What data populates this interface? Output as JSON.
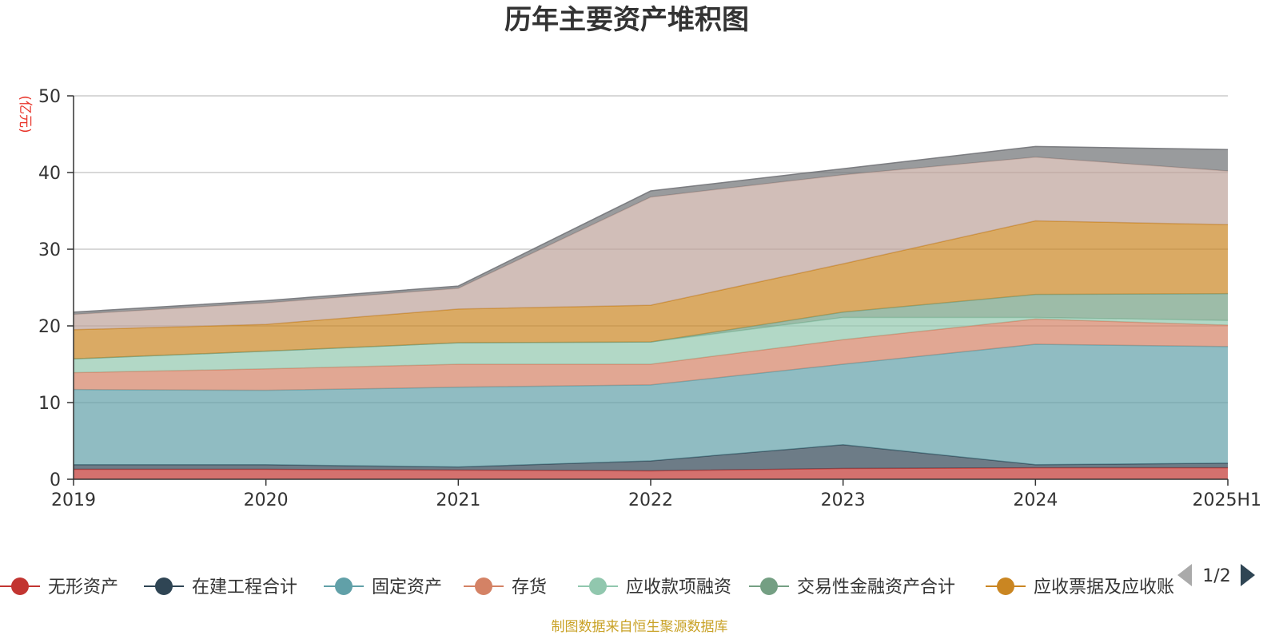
{
  "chart_data": {
    "type": "area",
    "stacked": true,
    "title": "历年主要资产堆积图",
    "ylabel": "(亿元)",
    "ylim": [
      0,
      50
    ],
    "yticks": [
      0,
      10,
      20,
      30,
      40,
      50
    ],
    "grid": true,
    "legend_position": "bottom",
    "categories": [
      "2019",
      "2020",
      "2021",
      "2022",
      "2023",
      "2024",
      "2025H1"
    ],
    "series": [
      {
        "name": "无形资产",
        "color": "#c23531",
        "values": [
          1.3,
          1.3,
          1.2,
          1.1,
          1.4,
          1.5,
          1.5
        ]
      },
      {
        "name": "在建工程合计",
        "color": "#2f4554",
        "values": [
          0.6,
          0.6,
          0.4,
          1.3,
          3.1,
          0.4,
          0.6
        ]
      },
      {
        "name": "固定资产",
        "color": "#61a0a8",
        "values": [
          9.8,
          9.7,
          10.4,
          9.9,
          10.5,
          15.7,
          15.2
        ]
      },
      {
        "name": "存货",
        "color": "#d48265",
        "values": [
          2.2,
          2.8,
          3.0,
          2.7,
          3.2,
          3.3,
          2.8
        ]
      },
      {
        "name": "应收款项融资",
        "color": "#91c7ae",
        "values": [
          1.8,
          2.3,
          2.8,
          2.9,
          2.9,
          0.2,
          0.6
        ]
      },
      {
        "name": "交易性金融资产合计",
        "color": "#749f83",
        "values": [
          0,
          0,
          0,
          0,
          0.7,
          3.0,
          3.5
        ]
      },
      {
        "name": "应收票据及应收账",
        "color": "#ca8622",
        "values": [
          3.8,
          3.5,
          4.4,
          4.8,
          6.3,
          9.6,
          9.0
        ]
      },
      {
        "name": "",
        "color": "#bda29a",
        "values": [
          2.0,
          2.8,
          2.7,
          14.1,
          11.6,
          8.3,
          7.0
        ]
      },
      {
        "name": "",
        "color": "#6e7074",
        "values": [
          0.3,
          0.3,
          0.3,
          0.8,
          0.8,
          1.4,
          2.8
        ]
      }
    ],
    "legend_visible_count": 7,
    "legend_page": "1/2",
    "source_note": "制图数据来自恒生聚源数据库"
  }
}
